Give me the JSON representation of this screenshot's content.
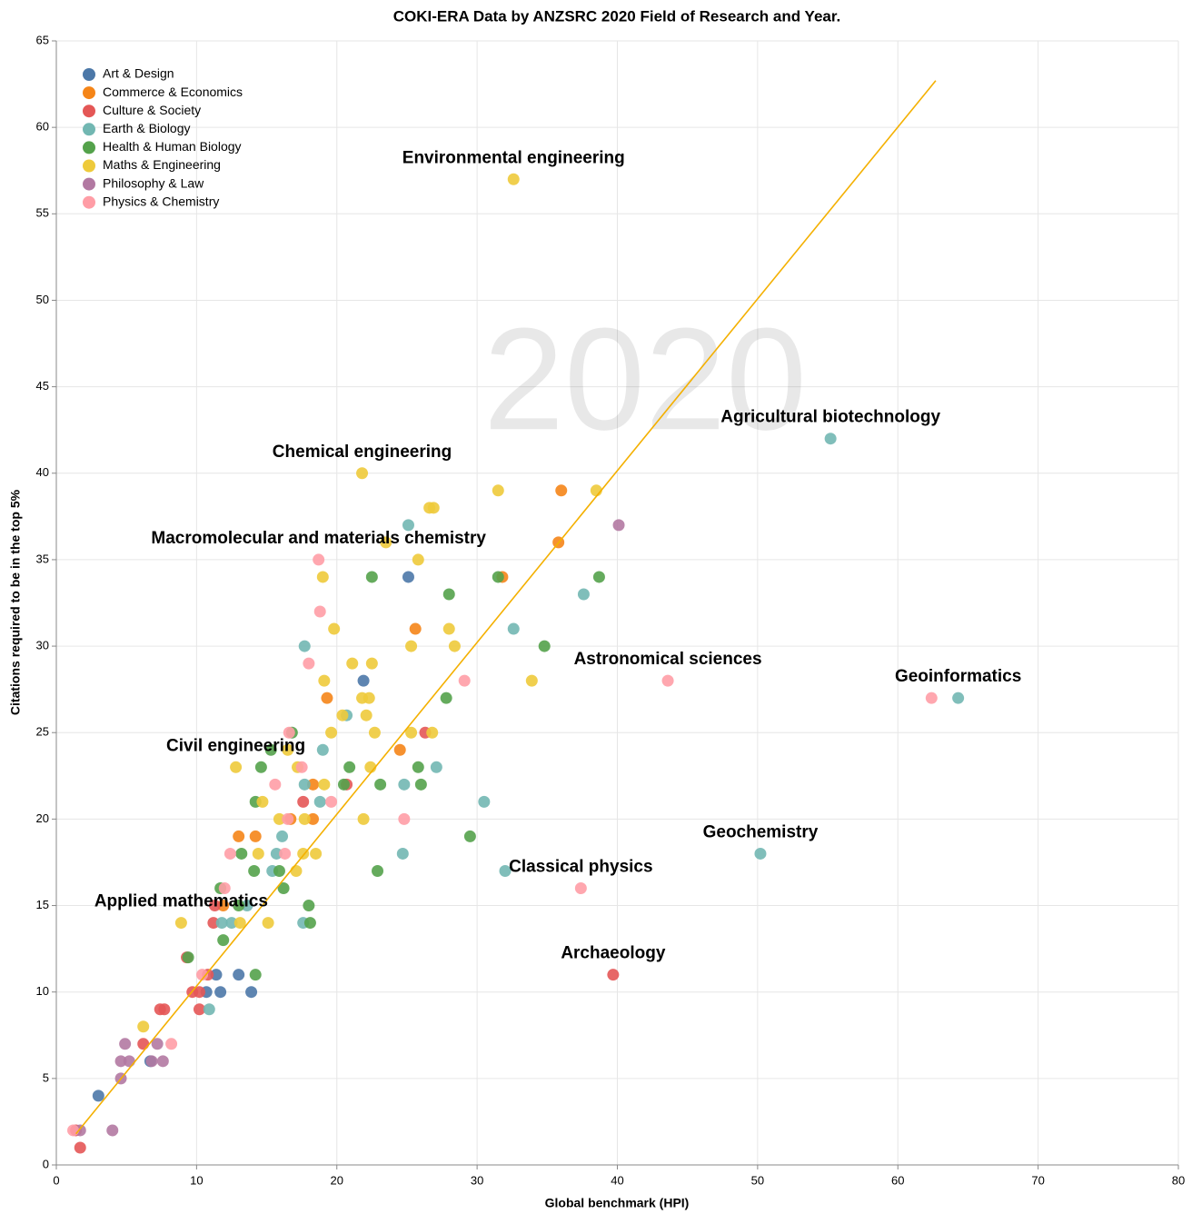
{
  "chart_data": {
    "type": "scatter",
    "title": "COKI-ERA Data by ANZSRC 2020 Field of Research and Year.",
    "x_label": "Global benchmark (HPI)",
    "y_label": "Citations required to be in the top 5%",
    "watermark": "2020",
    "xlim": [
      0,
      80
    ],
    "xticks": [
      0,
      10,
      20,
      30,
      40,
      50,
      60,
      70,
      80
    ],
    "ylim": [
      0,
      65
    ],
    "yticks": [
      0,
      5,
      10,
      15,
      20,
      25,
      30,
      35,
      40,
      45,
      50,
      55,
      60,
      65
    ],
    "grid": true,
    "legend": "top-left",
    "series": [
      {
        "name": "Art & Design",
        "color": "#4c78a8",
        "x": [
          3.0,
          6.7,
          10.7,
          11.4,
          11.7,
          13.0,
          13.9,
          21.9,
          25.1
        ],
        "values": [
          4,
          6,
          10,
          11,
          10,
          11,
          10,
          28,
          34
        ]
      },
      {
        "name": "Commerce & Economics",
        "color": "#f58518",
        "x": [
          36.0,
          35.8,
          31.8,
          25.6,
          24.5,
          19.3,
          18.3,
          18.3,
          13.0,
          14.2,
          16.7,
          11.9
        ],
        "values": [
          39,
          36,
          34,
          31,
          24,
          27,
          22,
          20,
          19,
          19,
          20,
          15
        ]
      },
      {
        "name": "Culture & Society",
        "color": "#e45756",
        "x": [
          39.7,
          26.3,
          1.4,
          1.7,
          6.2,
          7.4,
          7.7,
          9.7,
          10.2,
          10.2,
          9.3,
          11.2,
          11.3,
          17.6,
          20.7,
          10.8
        ],
        "values": [
          11,
          25,
          2,
          1,
          7,
          9,
          9,
          10,
          10,
          9,
          12,
          14,
          15,
          21,
          22,
          11
        ]
      },
      {
        "name": "Earth & Biology",
        "color": "#72b7b2",
        "x": [
          55.2,
          64.3,
          50.2,
          37.6,
          32.6,
          30.5,
          27.1,
          25.1,
          24.8,
          24.7,
          32.0,
          17.7,
          19.0,
          20.7,
          18.8,
          17.7,
          16.1,
          15.7,
          15.4,
          17.6,
          11.8,
          12.5,
          10.9,
          13.6
        ],
        "values": [
          42,
          27,
          18,
          33,
          31,
          21,
          23,
          37,
          22,
          18,
          17,
          30,
          24,
          26,
          21,
          22,
          19,
          18,
          17,
          14,
          14,
          14,
          9,
          15
        ]
      },
      {
        "name": "Health & Human Biology",
        "color": "#54a24b",
        "x": [
          38.7,
          34.8,
          31.5,
          28.0,
          27.8,
          26.0,
          25.8,
          29.5,
          22.5,
          23.1,
          20.9,
          20.5,
          22.9,
          16.8,
          14.6,
          15.3,
          14.2,
          18.0,
          18.1,
          16.2,
          15.9,
          14.1,
          13.2,
          11.7,
          11.9,
          14.2,
          9.4,
          13.0
        ],
        "values": [
          34,
          30,
          34,
          33,
          27,
          22,
          23,
          19,
          34,
          22,
          23,
          22,
          17,
          25,
          23,
          24,
          21,
          15,
          14,
          16,
          17,
          17,
          18,
          16,
          13,
          11,
          12,
          15
        ]
      },
      {
        "name": "Maths & Engineering",
        "color": "#eeca3b",
        "x": [
          32.6,
          21.8,
          31.5,
          38.5,
          26.6,
          26.9,
          23.5,
          25.8,
          19.0,
          28.0,
          25.3,
          28.4,
          19.8,
          21.1,
          22.5,
          19.1,
          33.9,
          21.8,
          22.3,
          20.4,
          22.1,
          19.6,
          22.7,
          25.3,
          26.8,
          12.8,
          17.2,
          22.4,
          16.5,
          19.1,
          14.7,
          15.9,
          17.7,
          21.9,
          14.4,
          17.6,
          18.5,
          17.1,
          8.9,
          15.1,
          6.2,
          13.1
        ],
        "values": [
          57,
          40,
          39,
          39,
          38,
          38,
          36,
          35,
          34,
          31,
          30,
          30,
          31,
          29,
          29,
          28,
          28,
          27,
          27,
          26,
          26,
          25,
          25,
          25,
          25,
          23,
          23,
          23,
          24,
          22,
          21,
          20,
          20,
          20,
          18,
          18,
          18,
          17,
          14,
          14,
          8,
          14
        ]
      },
      {
        "name": "Philosophy & Law",
        "color": "#b279a2",
        "x": [
          40.1,
          1.7,
          4.0,
          4.6,
          4.6,
          5.2,
          4.9,
          6.8,
          7.2,
          7.6
        ],
        "values": [
          37,
          2,
          2,
          5,
          6,
          6,
          7,
          6,
          7,
          6
        ]
      },
      {
        "name": "Physics & Chemistry",
        "color": "#ff9da6",
        "x": [
          62.4,
          43.6,
          37.4,
          29.1,
          24.8,
          18.7,
          18.8,
          18.0,
          16.6,
          17.5,
          15.6,
          16.5,
          19.6,
          16.3,
          12.4,
          8.2,
          10.4,
          1.2,
          12.0
        ],
        "values": [
          27,
          28,
          16,
          28,
          20,
          35,
          32,
          29,
          25,
          23,
          22,
          20,
          21,
          18,
          18,
          7,
          11,
          2,
          16
        ]
      }
    ],
    "trendline": {
      "color": "#f4b000",
      "x": [
        1.4,
        62.7
      ],
      "values": [
        1.8,
        62.7
      ]
    },
    "annotations": [
      {
        "text": "Environmental engineering",
        "x": 32.6,
        "y": 57
      },
      {
        "text": "Agricultural biotechnology",
        "x": 55.2,
        "y": 42
      },
      {
        "text": "Chemical engineering",
        "x": 21.8,
        "y": 40
      },
      {
        "text": "Macromolecular and materials chemistry",
        "x": 18.7,
        "y": 35
      },
      {
        "text": "Astronomical sciences",
        "x": 43.6,
        "y": 28
      },
      {
        "text": "Geoinformatics",
        "x": 64.3,
        "y": 27
      },
      {
        "text": "Civil engineering",
        "x": 12.8,
        "y": 23
      },
      {
        "text": "Geochemistry",
        "x": 50.2,
        "y": 18
      },
      {
        "text": "Classical physics",
        "x": 37.4,
        "y": 16
      },
      {
        "text": "Applied mathematics",
        "x": 8.9,
        "y": 14
      },
      {
        "text": "Archaeology",
        "x": 39.7,
        "y": 11
      }
    ]
  }
}
